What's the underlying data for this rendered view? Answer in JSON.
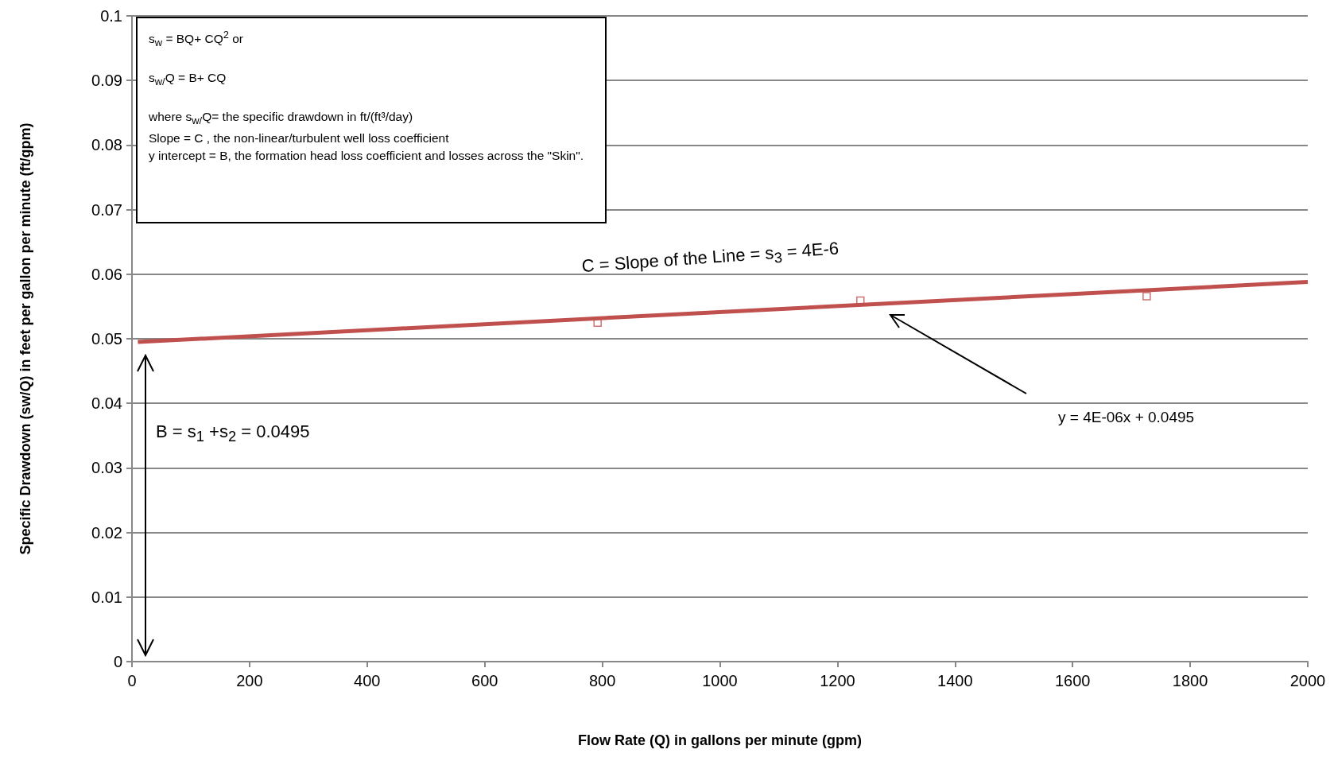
{
  "chart_data": {
    "type": "scatter",
    "xlabel": "Flow Rate (Q) in gallons per minute (gpm)",
    "ylabel": "Specific Drawdown (sw/Q) in feet per gallon per minute (ft/gpm)",
    "x": [
      792,
      1239,
      1726
    ],
    "series": [
      {
        "color": "#c0504d",
        "marker": "square",
        "values": [
          0.0525,
          0.0559,
          0.0566
        ]
      },
      {
        "type": "line",
        "color": "#c0504d",
        "marker": "none",
        "x": [
          10,
          2000
        ],
        "values": [
          0.0495,
          0.0588
        ]
      }
    ],
    "grid": "y",
    "xlim": [
      0,
      2000
    ],
    "xticks": [
      0,
      200,
      400,
      600,
      800,
      1000,
      1200,
      1400,
      1600,
      1800,
      2000
    ],
    "ylim": [
      0,
      0.1
    ],
    "yticks": [
      0,
      0.01,
      0.02,
      0.03,
      0.04,
      0.05,
      0.06,
      0.07,
      0.08,
      0.09,
      0.1
    ],
    "annotations": [
      "s$_{w}$ = BQ+ CQ$^{2}$  or",
      "s$_{w/}$Q = B+ CQ",
      "where s$_{w/}$Q= the specific drawdown in ft/(ft³/day)",
      "Slope = C , the non-linear/turbulent  well loss coefficient",
      "y intercept = B, the formation head loss coefficient and losses across the \"Skin\".",
      "C = Slope of the Line = s$_{3}$ = 4E-6",
      "B = s$_{1}$ +s$_{2}$ = 0.0495",
      "y = 4E-06x + 0.0495"
    ]
  }
}
